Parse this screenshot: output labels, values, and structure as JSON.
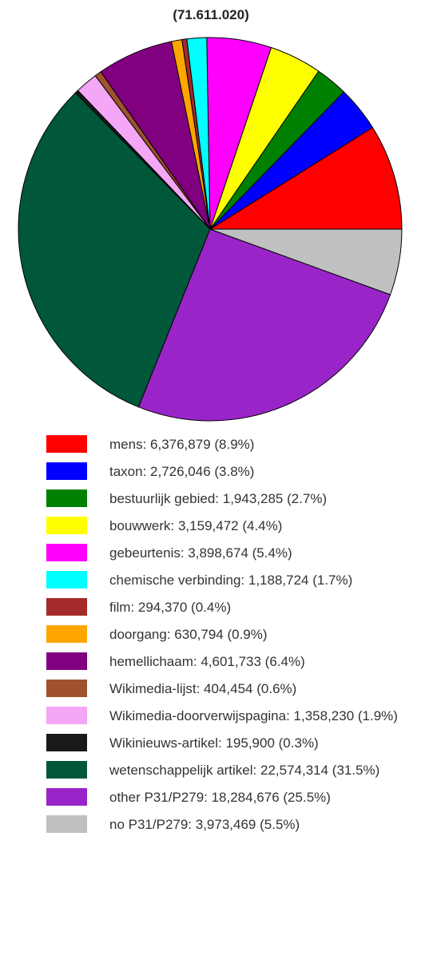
{
  "chart_data": {
    "type": "pie",
    "title": "(71.611.020)",
    "values": [
      6376879,
      2726046,
      1943285,
      3159472,
      3898674,
      1188724,
      294370,
      630794,
      4601733,
      404454,
      1358230,
      195900,
      22574314,
      18284676,
      3973469
    ],
    "value_labels": [
      "mens: 6,376,879 (8.9%)",
      "taxon: 2,726,046 (3.8%)",
      "bestuurlijk gebied: 1,943,285 (2.7%)",
      "bouwwerk: 3,159,472 (4.4%)",
      "gebeurtenis: 3,898,674 (5.4%)",
      "chemische verbinding: 1,188,724 (1.7%)",
      "film: 294,370 (0.4%)",
      "doorgang: 630,794 (0.9%)",
      "hemellichaam: 4,601,733 (6.4%)",
      "Wikimedia-lijst: 404,454 (0.6%)",
      "Wikimedia-doorverwijspagina: 1,358,230 (1.9%)",
      "Wikinieuws-artikel: 195,900 (0.3%)",
      "wetenschappelijk artikel: 22,574,314 (31.5%)",
      "other P31/P279: 18,284,676 (25.5%)",
      "no P31/P279: 3,973,469 (5.5%)"
    ],
    "colors": [
      "#ff0000",
      "#0000ff",
      "#008000",
      "#ffff00",
      "#ff00ff",
      "#00ffff",
      "#a52a2a",
      "#ffa500",
      "#800080",
      "#a0522d",
      "#f4a6f7",
      "#1a1a1a",
      "#00573a",
      "#9925c8",
      "#c0c0c0"
    ]
  }
}
